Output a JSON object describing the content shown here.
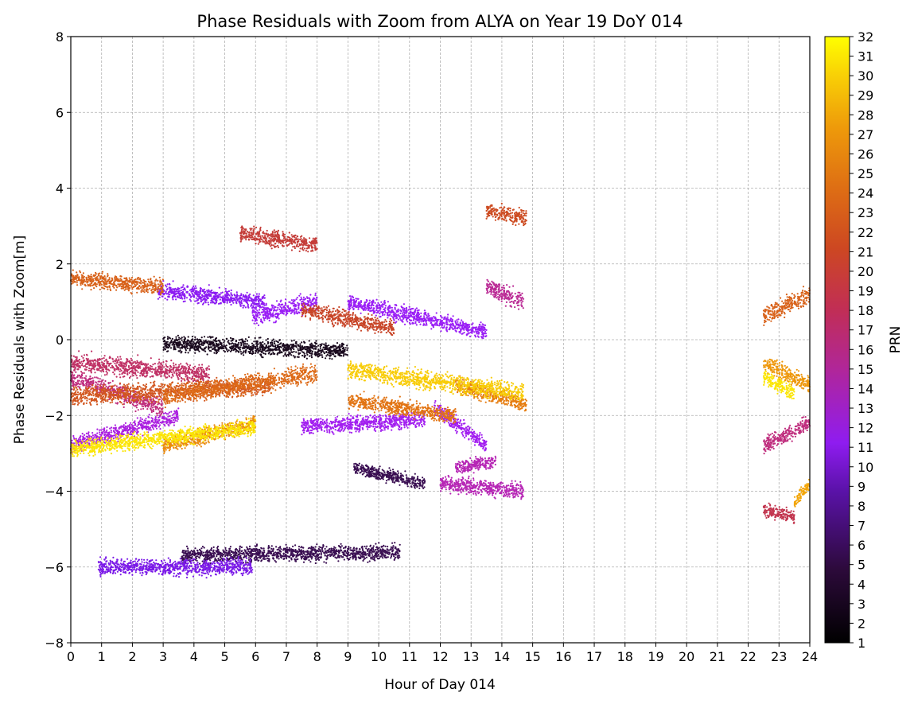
{
  "chart_data": {
    "type": "scatter",
    "title": "Phase Residuals with Zoom from ALYA on Year 19 DoY 014",
    "xlabel": "Hour of Day 014",
    "ylabel": "Phase Residuals with Zoom[m]",
    "xlim": [
      0,
      24
    ],
    "ylim": [
      -8,
      8
    ],
    "x_ticks": [
      "0",
      "1",
      "2",
      "3",
      "4",
      "5",
      "6",
      "7",
      "8",
      "9",
      "10",
      "11",
      "12",
      "13",
      "14",
      "15",
      "16",
      "17",
      "18",
      "19",
      "20",
      "21",
      "22",
      "23",
      "24"
    ],
    "y_ticks": [
      "8",
      "6",
      "4",
      "2",
      "0",
      "−2",
      "−4",
      "−6",
      "−8"
    ],
    "grid": true,
    "colorbar": {
      "label": "PRN",
      "min": 1,
      "max": 32,
      "colormap": "gnuplot",
      "ticks": [
        "32",
        "31",
        "30",
        "29",
        "28",
        "27",
        "26",
        "25",
        "24",
        "23",
        "22",
        "21",
        "20",
        "19",
        "18",
        "17",
        "16",
        "15",
        "14",
        "13",
        "12",
        "11",
        "10",
        "9",
        "8",
        "7",
        "6",
        "5",
        "4",
        "3",
        "2",
        "1"
      ]
    },
    "series": [
      {
        "prn": 2,
        "x": [
          3.0,
          9.0
        ],
        "y_start": -0.1,
        "y_end": -0.3,
        "spread": 0.3,
        "color": "#1a0a1e"
      },
      {
        "prn": 3,
        "x": [
          3.6,
          10.7
        ],
        "y_start": -5.7,
        "y_end": -5.6,
        "spread": 0.3,
        "color": "#3a0f52"
      },
      {
        "prn": 3,
        "x": [
          9.2,
          11.5
        ],
        "y_start": -3.4,
        "y_end": -3.8,
        "spread": 0.25,
        "color": "#3a0f52"
      },
      {
        "prn": 7,
        "x": [
          0.9,
          5.9
        ],
        "y_start": -6.0,
        "y_end": -6.0,
        "spread": 0.3,
        "color": "#7b1ae8"
      },
      {
        "prn": 8,
        "x": [
          2.8,
          6.3
        ],
        "y_start": 1.3,
        "y_end": 1.0,
        "spread": 0.3,
        "color": "#8c1cf2"
      },
      {
        "prn": 9,
        "x": [
          5.9,
          8.0
        ],
        "y_start": 0.6,
        "y_end": 1.0,
        "spread": 0.35,
        "color": "#9a1ff5"
      },
      {
        "prn": 9,
        "x": [
          9.0,
          13.5
        ],
        "y_start": 1.0,
        "y_end": 0.2,
        "spread": 0.3,
        "color": "#9a1ff5"
      },
      {
        "prn": 10,
        "x": [
          7.5,
          11.5
        ],
        "y_start": -2.3,
        "y_end": -2.1,
        "spread": 0.3,
        "color": "#a21ff0"
      },
      {
        "prn": 10,
        "x": [
          11.8,
          13.5
        ],
        "y_start": -1.8,
        "y_end": -2.8,
        "spread": 0.3,
        "color": "#a21ff0"
      },
      {
        "prn": 11,
        "x": [
          0.0,
          3.5
        ],
        "y_start": -2.8,
        "y_end": -2.0,
        "spread": 0.3,
        "color": "#ab20e0"
      },
      {
        "prn": 13,
        "x": [
          12.0,
          14.7
        ],
        "y_start": -3.8,
        "y_end": -4.0,
        "spread": 0.3,
        "color": "#b626b5"
      },
      {
        "prn": 13,
        "x": [
          12.5,
          13.8
        ],
        "y_start": -3.4,
        "y_end": -3.2,
        "spread": 0.25,
        "color": "#b626b5"
      },
      {
        "prn": 14,
        "x": [
          13.5,
          14.7
        ],
        "y_start": 1.4,
        "y_end": 1.0,
        "spread": 0.35,
        "color": "#ba2a95"
      },
      {
        "prn": 15,
        "x": [
          0.0,
          3.0
        ],
        "y_start": -1.0,
        "y_end": -1.8,
        "spread": 0.35,
        "color": "#bf2e7e"
      },
      {
        "prn": 15,
        "x": [
          22.5,
          24.0
        ],
        "y_start": -2.8,
        "y_end": -2.2,
        "spread": 0.3,
        "color": "#bf2e7e"
      },
      {
        "prn": 16,
        "x": [
          0.0,
          4.5
        ],
        "y_start": -0.6,
        "y_end": -0.9,
        "spread": 0.35,
        "color": "#c03266"
      },
      {
        "prn": 17,
        "x": [
          22.5,
          23.5
        ],
        "y_start": -4.5,
        "y_end": -4.7,
        "spread": 0.25,
        "color": "#c2364f"
      },
      {
        "prn": 18,
        "x": [
          5.5,
          8.0
        ],
        "y_start": 2.8,
        "y_end": 2.5,
        "spread": 0.3,
        "color": "#c43c38"
      },
      {
        "prn": 19,
        "x": [
          7.5,
          10.5
        ],
        "y_start": 0.8,
        "y_end": 0.3,
        "spread": 0.3,
        "color": "#c84528"
      },
      {
        "prn": 20,
        "x": [
          13.5,
          14.8
        ],
        "y_start": 3.4,
        "y_end": 3.2,
        "spread": 0.3,
        "color": "#cd4c22"
      },
      {
        "prn": 21,
        "x": [
          0.0,
          6.5
        ],
        "y_start": -1.5,
        "y_end": -1.2,
        "spread": 0.35,
        "color": "#d2561f"
      },
      {
        "prn": 22,
        "x": [
          0.0,
          3.0
        ],
        "y_start": 1.6,
        "y_end": 1.4,
        "spread": 0.3,
        "color": "#d8621a"
      },
      {
        "prn": 22,
        "x": [
          22.5,
          24.0
        ],
        "y_start": 0.6,
        "y_end": 1.2,
        "spread": 0.35,
        "color": "#d8621a"
      },
      {
        "prn": 23,
        "x": [
          3.0,
          8.0
        ],
        "y_start": -1.5,
        "y_end": -0.9,
        "spread": 0.35,
        "color": "#dd6a17"
      },
      {
        "prn": 24,
        "x": [
          9.0,
          12.5
        ],
        "y_start": -1.6,
        "y_end": -2.0,
        "spread": 0.3,
        "color": "#e27413"
      },
      {
        "prn": 25,
        "x": [
          12.5,
          14.8
        ],
        "y_start": -1.2,
        "y_end": -1.7,
        "spread": 0.3,
        "color": "#e67d10"
      },
      {
        "prn": 26,
        "x": [
          3.0,
          6.0
        ],
        "y_start": -2.8,
        "y_end": -2.2,
        "spread": 0.3,
        "color": "#ea8a0d"
      },
      {
        "prn": 27,
        "x": [
          22.5,
          24.0
        ],
        "y_start": -0.6,
        "y_end": -1.2,
        "spread": 0.3,
        "color": "#ee970a"
      },
      {
        "prn": 28,
        "x": [
          23.5,
          24.0
        ],
        "y_start": -4.3,
        "y_end": -3.8,
        "spread": 0.25,
        "color": "#f2a508"
      },
      {
        "prn": 30,
        "x": [
          9.0,
          14.7
        ],
        "y_start": -0.8,
        "y_end": -1.4,
        "spread": 0.35,
        "color": "#f8cc06"
      },
      {
        "prn": 31,
        "x": [
          0.0,
          6.0
        ],
        "y_start": -2.9,
        "y_end": -2.3,
        "spread": 0.3,
        "color": "#fbe505"
      },
      {
        "prn": 31,
        "x": [
          22.5,
          23.5
        ],
        "y_start": -1.0,
        "y_end": -1.4,
        "spread": 0.3,
        "color": "#fbe505"
      }
    ]
  }
}
